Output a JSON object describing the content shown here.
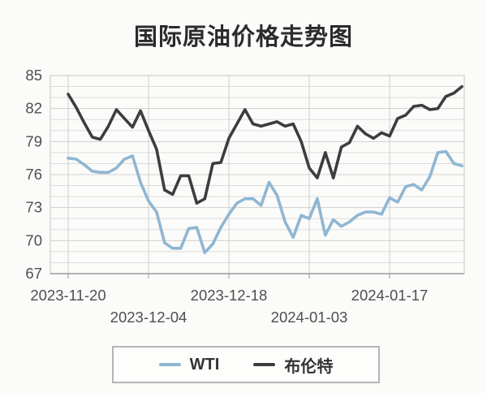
{
  "title": "国际原油价格走势图",
  "colors": {
    "wti": "#8fb6d2",
    "brent": "#3d3d3d",
    "grid_minor": "#dcdcdc",
    "grid_major": "#cfcfcf",
    "plot_border": "#c4c4c4",
    "axis_line": "#9a9a9a",
    "axis_text": "#4f4f4f",
    "title_text": "#2b2b2b",
    "background": "#fbfbfa"
  },
  "legend": {
    "items": [
      {
        "label": "WTI",
        "series": "wti"
      },
      {
        "label": "布伦特",
        "series": "brent"
      }
    ]
  },
  "chart_data": {
    "type": "line",
    "title": "国际原油价格走势图",
    "xlabel": "",
    "ylabel": "",
    "ylim": [
      67,
      85
    ],
    "y_ticks": [
      67,
      70,
      73,
      76,
      79,
      82,
      85
    ],
    "y_minor_step": 1,
    "grid": true,
    "legend_position": "bottom",
    "x_ticks": [
      {
        "label": "2023-11-20",
        "index": 0,
        "row": 1
      },
      {
        "label": "2023-12-04",
        "index": 10,
        "row": 2
      },
      {
        "label": "2023-12-18",
        "index": 20,
        "row": 1
      },
      {
        "label": "2024-01-03",
        "index": 30,
        "row": 2
      },
      {
        "label": "2024-01-17",
        "index": 40,
        "row": 1
      }
    ],
    "series": [
      {
        "name": "WTI",
        "color_key": "wti",
        "values": [
          77.5,
          77.4,
          76.9,
          76.3,
          76.2,
          76.2,
          76.6,
          77.4,
          77.7,
          75.3,
          73.6,
          72.6,
          69.8,
          69.3,
          69.3,
          71.1,
          71.2,
          68.9,
          69.7,
          71.2,
          72.4,
          73.4,
          73.8,
          73.8,
          73.2,
          75.3,
          74.1,
          71.7,
          70.3,
          72.3,
          72.0,
          73.8,
          70.5,
          71.9,
          71.3,
          71.7,
          72.3,
          72.6,
          72.6,
          72.4,
          73.9,
          73.5,
          74.9,
          75.1,
          74.6,
          75.8,
          78.0,
          78.1,
          77.0,
          76.8
        ]
      },
      {
        "name": "布伦特",
        "color_key": "brent",
        "values": [
          83.3,
          82.1,
          80.7,
          79.4,
          79.2,
          80.4,
          81.9,
          81.1,
          80.3,
          81.8,
          80.0,
          78.3,
          74.6,
          74.2,
          75.9,
          75.9,
          73.4,
          73.8,
          77.0,
          77.1,
          79.3,
          80.6,
          81.9,
          80.6,
          80.4,
          80.6,
          80.8,
          80.4,
          80.6,
          79.0,
          76.6,
          75.7,
          78.0,
          75.7,
          78.5,
          78.9,
          80.4,
          79.7,
          79.3,
          79.8,
          79.5,
          81.1,
          81.4,
          82.2,
          82.3,
          81.9,
          82.0,
          83.1,
          83.4,
          84.0
        ]
      }
    ]
  }
}
